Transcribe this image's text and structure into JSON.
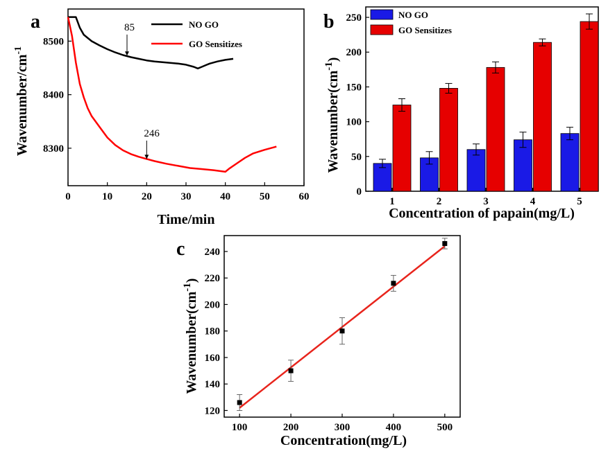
{
  "colors": {
    "no_go": "#000000",
    "go": "#ff0000",
    "bar_no_go": "#1a1ae6",
    "bar_go": "#e60000",
    "fit_line": "#e8241c"
  },
  "chart_data": [
    {
      "panel": "a",
      "type": "line",
      "xlabel": "Time/min",
      "ylabel": "Wavenumber/cm",
      "ylabel_sup": "-1",
      "xlim": [
        0,
        60
      ],
      "ylim": [
        8230,
        8560
      ],
      "xticks": [
        0,
        10,
        20,
        30,
        40,
        50,
        60
      ],
      "yticks": [
        8300,
        8400,
        8500
      ],
      "legend": "top-right",
      "series": [
        {
          "name": "NO GO",
          "color": "#000000",
          "x": [
            0,
            1,
            2,
            3,
            4,
            6,
            8,
            10,
            12,
            14,
            16,
            18,
            20,
            22,
            25,
            28,
            30,
            32,
            33,
            34,
            35,
            36,
            38,
            40,
            42
          ],
          "y": [
            8545,
            8545,
            8545,
            8525,
            8512,
            8500,
            8492,
            8485,
            8479,
            8474,
            8470,
            8467,
            8464,
            8462,
            8460,
            8458,
            8456,
            8452,
            8449,
            8452,
            8455,
            8458,
            8462,
            8465,
            8467
          ]
        },
        {
          "name": "GO Sensitizes",
          "color": "#ff0000",
          "x": [
            0,
            1,
            2,
            3,
            4,
            5,
            6,
            8,
            10,
            12,
            14,
            16,
            18,
            20,
            22,
            25,
            28,
            31,
            34,
            37,
            39,
            40,
            41,
            43,
            45,
            47,
            50,
            53
          ],
          "y": [
            8545,
            8510,
            8460,
            8420,
            8395,
            8375,
            8360,
            8340,
            8320,
            8306,
            8296,
            8289,
            8284,
            8280,
            8276,
            8271,
            8267,
            8263,
            8261,
            8259,
            8257,
            8256,
            8262,
            8272,
            8282,
            8290,
            8297,
            8303
          ]
        }
      ],
      "annotations": [
        {
          "text": "85",
          "x": 15,
          "y": 8520,
          "arrow_to": [
            15,
            8473
          ]
        },
        {
          "text": "246",
          "x": 20,
          "y": 8322,
          "arrow_to": [
            20,
            8280
          ]
        }
      ]
    },
    {
      "panel": "b",
      "type": "bar",
      "xlabel": "Concentration of papain(mg/L)",
      "ylabel": "Wavenumber(cm",
      "ylabel_sup": "-1",
      "ylabel_close": ")",
      "categories": [
        "1",
        "2",
        "3",
        "4",
        "5"
      ],
      "ylim": [
        0,
        265
      ],
      "yticks": [
        0,
        50,
        100,
        150,
        200,
        250
      ],
      "legend": "top-left",
      "series": [
        {
          "name": "NO GO",
          "color": "#1a1ae6",
          "values": [
            40,
            48,
            60,
            74,
            83
          ],
          "errors": [
            6,
            9,
            8,
            11,
            9
          ]
        },
        {
          "name": "GO Sensitizes",
          "color": "#e60000",
          "values": [
            124,
            148,
            178,
            214,
            244
          ],
          "errors": [
            9,
            7,
            8,
            5,
            11
          ]
        }
      ]
    },
    {
      "panel": "c",
      "type": "scatter",
      "xlabel": "Concentration(mg/L)",
      "ylabel": "Wavenumber(cm",
      "ylabel_sup": "-1",
      "ylabel_close": ")",
      "xlim": [
        70,
        530
      ],
      "ylim": [
        115,
        252
      ],
      "xticks": [
        100,
        200,
        300,
        400,
        500
      ],
      "yticks": [
        120,
        140,
        160,
        180,
        200,
        220,
        240
      ],
      "points": {
        "x": [
          100,
          200,
          300,
          400,
          500
        ],
        "y": [
          126,
          150,
          180,
          216,
          246
        ],
        "errors": [
          6,
          8,
          10,
          6,
          4
        ]
      },
      "fit": {
        "x": [
          100,
          500
        ],
        "y": [
          122,
          244
        ]
      }
    }
  ]
}
